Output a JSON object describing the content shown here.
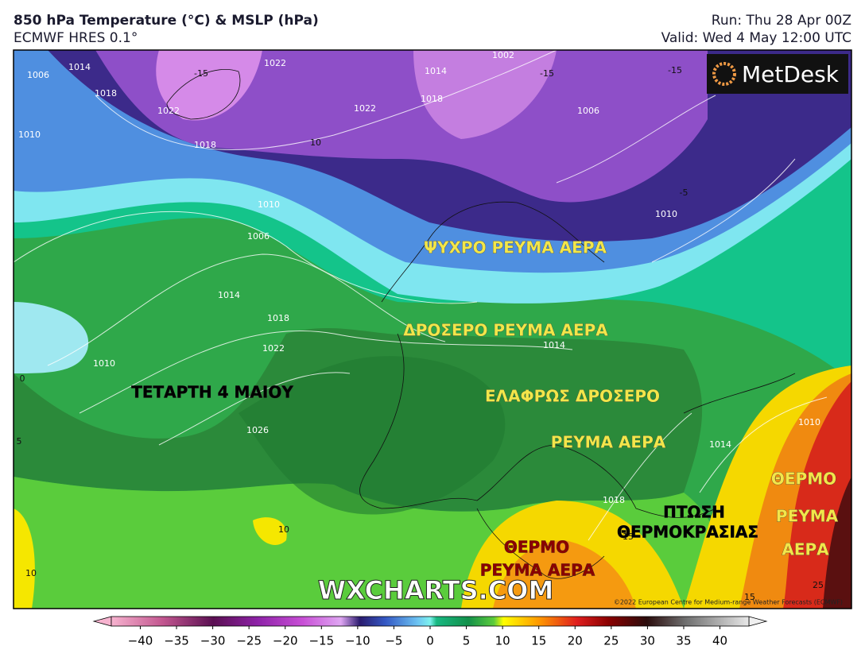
{
  "header": {
    "title": "850 hPa Temperature (°C) & MSLP (hPa)",
    "model": "ECMWF HRES 0.1°",
    "run": "Run: Thu 28 Apr 00Z",
    "valid": "Valid: Wed 4 May 12:00 UTC"
  },
  "logo": "MetDesk",
  "map": {
    "watermark": "WXCHARTS.COM",
    "copyright": "©2022 European Centre for Medium-range Weather Forecasts (ECMWF)",
    "contour_labels": [
      -15,
      -15,
      -15,
      1022,
      1018,
      1014,
      1006,
      1010,
      1022,
      1018,
      10,
      1022,
      1018,
      1014,
      1002,
      1006,
      -5,
      1010,
      1006,
      1010,
      1014,
      1018,
      1022,
      1010,
      0,
      5,
      1026,
      10,
      10,
      1014,
      1010,
      1014,
      1018,
      15,
      15,
      25
    ],
    "annotations": [
      {
        "text": "ΨΥΧΡΟ ΡΕΥΜΑ ΑΕΡΑ",
        "color": "#f2e64a"
      },
      {
        "text": "ΔΡΟΣΕΡΟ ΡΕΥΜΑ ΑΕΡΑ",
        "color": "#f2e64a"
      },
      {
        "text": "ΤΕΤΑΡΤΗ 4 ΜΑΙΟΥ",
        "color": "#000000"
      },
      {
        "text": "ΕΛΑΦΡΩΣ ΔΡΟΣΕΡΟ",
        "color": "#f2e64a"
      },
      {
        "text": "ΡΕΥΜΑ ΑΕΡΑ",
        "color": "#f2e64a"
      },
      {
        "text": "ΠΤΩΣΗ",
        "color": "#000000"
      },
      {
        "text": "ΘΕΡΜΟΚΡΑΣΙΑΣ",
        "color": "#000000"
      },
      {
        "text": "ΘΕΡΜΟ",
        "color": "#8b0000"
      },
      {
        "text": "ΡΕΥΜΑ ΑΕΡΑ",
        "color": "#8b0000"
      },
      {
        "text": "ΘΕΡΜΟ",
        "color": "#f2e64a"
      },
      {
        "text": "ΡΕΥΜΑ",
        "color": "#f2e64a"
      },
      {
        "text": "ΑΕΡΑ",
        "color": "#f2e64a"
      }
    ]
  },
  "colorbar": {
    "lim": [
      -44,
      44
    ],
    "ticks": [
      {
        "value": -40,
        "label": "−40"
      },
      {
        "value": -35,
        "label": "−35"
      },
      {
        "value": -30,
        "label": "−30"
      },
      {
        "value": -25,
        "label": "−25"
      },
      {
        "value": -20,
        "label": "−20"
      },
      {
        "value": -15,
        "label": "−15"
      },
      {
        "value": -10,
        "label": "−10"
      },
      {
        "value": -5,
        "label": "−5"
      },
      0,
      5,
      10,
      15,
      20,
      25,
      30,
      35,
      40
    ]
  }
}
